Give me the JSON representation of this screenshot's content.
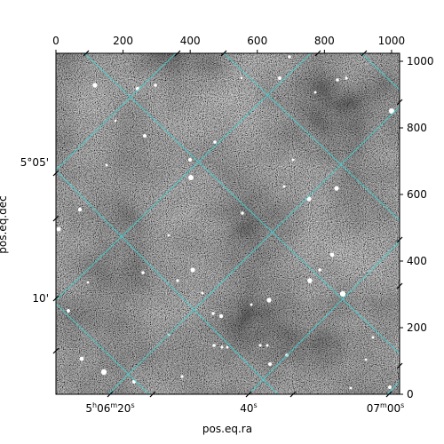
{
  "axes": {
    "xlabel": "pos.eq.ra",
    "ylabel": "pos.eq.dec",
    "pixel_x": {
      "range": [
        0,
        1024
      ],
      "ticks": [
        "0",
        "200",
        "400",
        "600",
        "800",
        "1000"
      ],
      "values": [
        0,
        200,
        400,
        600,
        800,
        1000
      ]
    },
    "pixel_y": {
      "range": [
        0,
        1024
      ],
      "ticks": [
        "0",
        "200",
        "400",
        "600",
        "800",
        "1000"
      ],
      "values": [
        0,
        200,
        400,
        600,
        800,
        1000
      ]
    },
    "ra_ticks": [
      {
        "h": "5",
        "m": "06",
        "s": "20"
      },
      {
        "h": "",
        "m": "",
        "s": "40"
      },
      {
        "h": "",
        "m": "07",
        "s": "00"
      }
    ],
    "dec_ticks": [
      "5°05'",
      "10'"
    ]
  },
  "image": {
    "kind": "grayscale astronomical field",
    "grid_color": "#3fd6d6",
    "background": "#6a6a6a"
  }
}
